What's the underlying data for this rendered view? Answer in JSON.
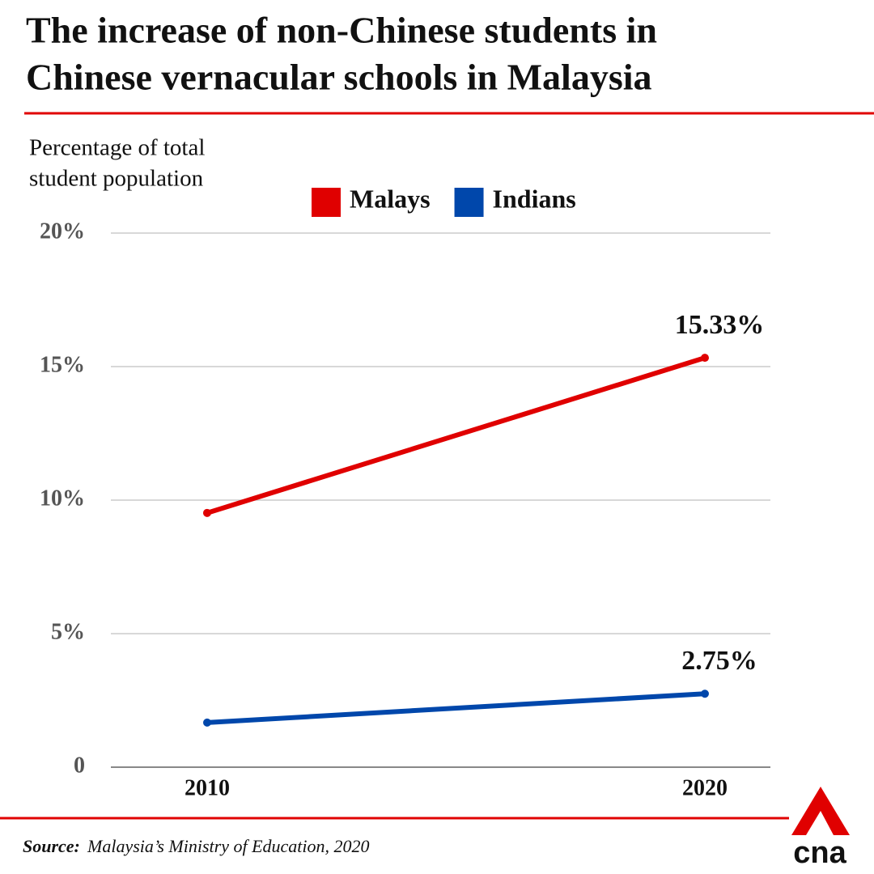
{
  "chart_data": {
    "type": "line",
    "title": [
      "The increase of non-Chinese students in",
      "Chinese vernacular schools in Malaysia"
    ],
    "ylabel": [
      "Percentage of total",
      "student population"
    ],
    "categories": [
      "2010",
      "2020"
    ],
    "series": [
      {
        "name": "Malays",
        "color": "#e00000",
        "values": [
          9.52,
          15.33
        ],
        "value_labels": [
          null,
          "15.33%"
        ]
      },
      {
        "name": "Indians",
        "color": "#0047ab",
        "values": [
          1.67,
          2.75
        ],
        "value_labels": [
          null,
          "2.75%"
        ]
      }
    ],
    "ylim": [
      0,
      20
    ],
    "yticks": [
      0,
      {
        "value": 5,
        "label": "5%"
      },
      {
        "value": 10,
        "label": "10%"
      },
      {
        "value": 15,
        "label": "15%"
      },
      {
        "value": 20,
        "label": "20%"
      }
    ],
    "grid": true,
    "legend": "top",
    "source_label": "Source:",
    "source": "Malaysia’s Ministry of Education, 2020",
    "logo": "cna"
  }
}
